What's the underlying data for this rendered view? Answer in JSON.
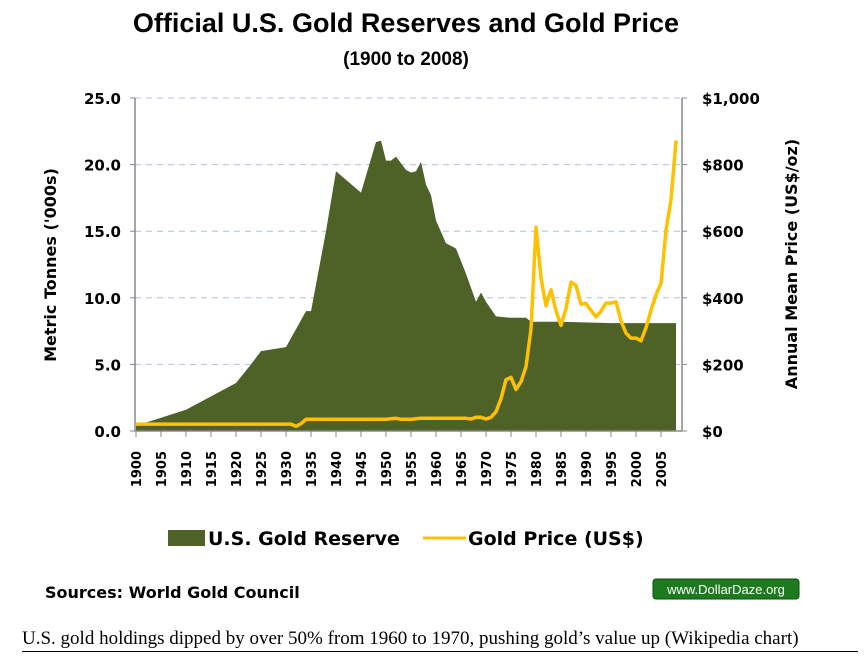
{
  "chart_data": {
    "type": "area+line",
    "title": "Official U.S. Gold Reserves and Gold Price",
    "subtitle": "(1900 to 2008)",
    "xlabel": "",
    "ylabel": "Metric Tonnes ('000s)",
    "y2label": "Annual Mean Price (US$/oz)",
    "xlim": [
      1900,
      2008
    ],
    "ylim": [
      0,
      25
    ],
    "y2lim": [
      0,
      1000
    ],
    "grid": true,
    "legend_position": "bottom",
    "x_ticks": [
      "1900",
      "1905",
      "1910",
      "1915",
      "1920",
      "1925",
      "1930",
      "1935",
      "1940",
      "1945",
      "1950",
      "1955",
      "1960",
      "1965",
      "1970",
      "1975",
      "1980",
      "1985",
      "1990",
      "1995",
      "2000",
      "2005"
    ],
    "y_ticks": [
      "0.0",
      "5.0",
      "10.0",
      "15.0",
      "20.0",
      "25.0"
    ],
    "y2_ticks": [
      "$0",
      "$200",
      "$400",
      "$600",
      "$800",
      "$1,000"
    ],
    "series": [
      {
        "name": "U.S. Gold Reserve",
        "type": "area",
        "axis": "left",
        "color": "#4e6228",
        "points": [
          [
            1900,
            0.4
          ],
          [
            1905,
            1.0
          ],
          [
            1910,
            1.6
          ],
          [
            1915,
            2.6
          ],
          [
            1920,
            3.6
          ],
          [
            1923,
            5.0
          ],
          [
            1925,
            6.0
          ],
          [
            1930,
            6.3
          ],
          [
            1934,
            9.0
          ],
          [
            1935,
            9.0
          ],
          [
            1938,
            15.0
          ],
          [
            1940,
            19.5
          ],
          [
            1945,
            17.9
          ],
          [
            1948,
            21.7
          ],
          [
            1949,
            21.8
          ],
          [
            1950,
            20.3
          ],
          [
            1951,
            20.3
          ],
          [
            1952,
            20.6
          ],
          [
            1954,
            19.6
          ],
          [
            1955,
            19.4
          ],
          [
            1956,
            19.5
          ],
          [
            1957,
            20.2
          ],
          [
            1958,
            18.5
          ],
          [
            1959,
            17.7
          ],
          [
            1960,
            15.8
          ],
          [
            1962,
            14.1
          ],
          [
            1964,
            13.7
          ],
          [
            1966,
            11.8
          ],
          [
            1968,
            9.7
          ],
          [
            1969,
            10.4
          ],
          [
            1970,
            9.7
          ],
          [
            1972,
            8.6
          ],
          [
            1975,
            8.5
          ],
          [
            1978,
            8.5
          ],
          [
            1979,
            8.2
          ],
          [
            1985,
            8.2
          ],
          [
            1995,
            8.1
          ],
          [
            2008,
            8.1
          ]
        ]
      },
      {
        "name": "Gold Price (US$)",
        "type": "line",
        "axis": "right",
        "color": "#ffc000",
        "points": [
          [
            1900,
            20.67
          ],
          [
            1910,
            20.67
          ],
          [
            1920,
            20.67
          ],
          [
            1930,
            20.67
          ],
          [
            1931,
            20.67
          ],
          [
            1932,
            14
          ],
          [
            1933,
            22
          ],
          [
            1934,
            35
          ],
          [
            1940,
            35
          ],
          [
            1950,
            35
          ],
          [
            1952,
            38
          ],
          [
            1953,
            35
          ],
          [
            1955,
            35
          ],
          [
            1957,
            38
          ],
          [
            1960,
            38
          ],
          [
            1966,
            38
          ],
          [
            1967,
            36
          ],
          [
            1968,
            41
          ],
          [
            1969,
            41
          ],
          [
            1970,
            36
          ],
          [
            1971,
            41
          ],
          [
            1972,
            58
          ],
          [
            1973,
            97
          ],
          [
            1974,
            154
          ],
          [
            1975,
            161
          ],
          [
            1976,
            125
          ],
          [
            1977,
            148
          ],
          [
            1978,
            193
          ],
          [
            1979,
            307
          ],
          [
            1980,
            612
          ],
          [
            1981,
            460
          ],
          [
            1982,
            376
          ],
          [
            1983,
            424
          ],
          [
            1984,
            361
          ],
          [
            1985,
            317
          ],
          [
            1986,
            368
          ],
          [
            1987,
            447
          ],
          [
            1988,
            437
          ],
          [
            1989,
            381
          ],
          [
            1990,
            383
          ],
          [
            1991,
            362
          ],
          [
            1992,
            343
          ],
          [
            1993,
            360
          ],
          [
            1994,
            384
          ],
          [
            1995,
            384
          ],
          [
            1996,
            388
          ],
          [
            1997,
            331
          ],
          [
            1998,
            294
          ],
          [
            1999,
            279
          ],
          [
            2000,
            279
          ],
          [
            2001,
            271
          ],
          [
            2002,
            310
          ],
          [
            2003,
            363
          ],
          [
            2004,
            409
          ],
          [
            2005,
            444
          ],
          [
            2006,
            603
          ],
          [
            2007,
            695
          ],
          [
            2008,
            872
          ]
        ]
      }
    ]
  },
  "legend": {
    "reserve_label": "U.S. Gold Reserve",
    "price_label": "Gold Price (US$)"
  },
  "footer": {
    "sources": "Sources: World Gold Council",
    "badge": "www.DollarDaze.org",
    "badge_color": "#1e7a1e",
    "caption": "U.S. gold holdings dipped by over 50% from 1960 to 1970, pushing gold’s value up (Wikipedia chart)"
  }
}
